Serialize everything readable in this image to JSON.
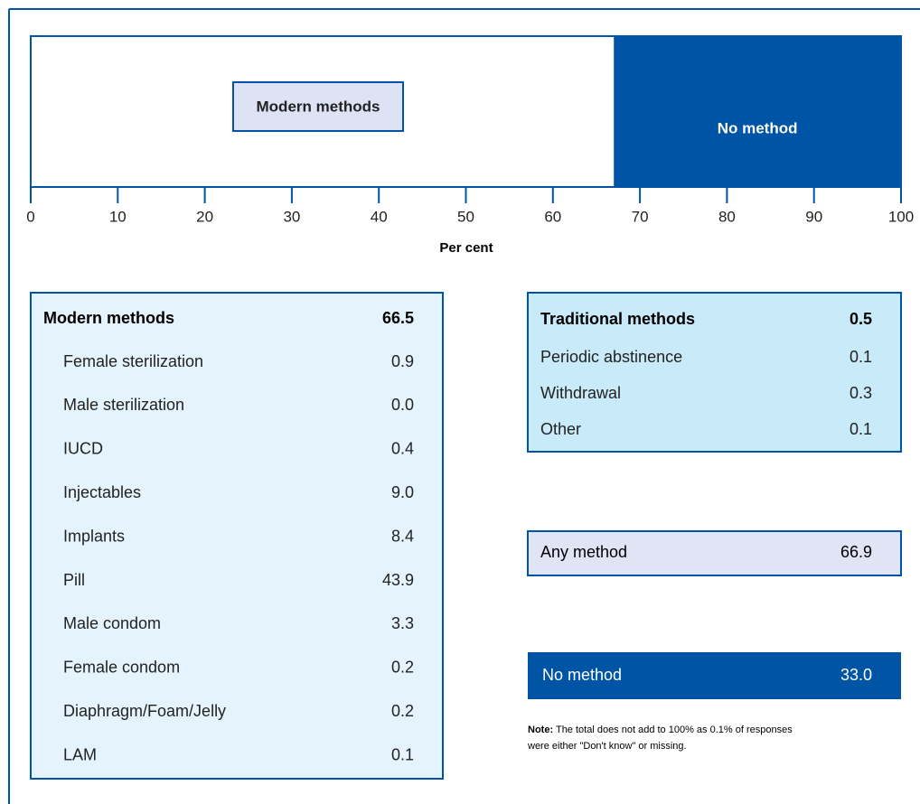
{
  "chart_data": {
    "type": "bar",
    "xlabel": "Per cent",
    "xlim": [
      0,
      100
    ],
    "xticks": [
      0,
      10,
      20,
      30,
      40,
      50,
      60,
      70,
      80,
      90,
      100
    ],
    "series": [
      {
        "name": "Modern methods",
        "color": "#ffffff",
        "values": [
          66.5
        ]
      },
      {
        "name": "Traditional methods",
        "color": "#ffffff",
        "values": [
          0.5
        ]
      },
      {
        "name": "No method",
        "color": "#0054a6",
        "values": [
          33.0
        ],
        "value_labels": [
          "33.0"
        ]
      }
    ]
  },
  "modern_table": {
    "rows": [
      [
        "Female sterilization",
        "0.9"
      ],
      [
        "Male sterilization",
        "0.0"
      ],
      [
        "IUCD",
        "0.4"
      ],
      [
        "Injectables",
        "9.0"
      ],
      [
        "Implants",
        "8.4"
      ],
      [
        "Pill",
        "43.9"
      ],
      [
        "Male condom",
        "3.3"
      ],
      [
        "Female condom",
        "0.2"
      ],
      [
        "Diaphragm/Foam/Jelly",
        "0.2"
      ],
      [
        "LAM",
        "0.1"
      ]
    ]
  },
  "traditional_table": {
    "rows": [
      [
        "Periodic abstinence",
        "0.1"
      ],
      [
        "Withdrawal",
        "0.3"
      ],
      [
        "Other",
        "0.1"
      ]
    ]
  },
  "any_method": [
    "Any method",
    "66.9"
  ],
  "note": {
    "heading": "Note:",
    "text": "The total does not add to 100% as 0.1% of responses",
    "text2": "were either \"Don't know\" or missing."
  }
}
